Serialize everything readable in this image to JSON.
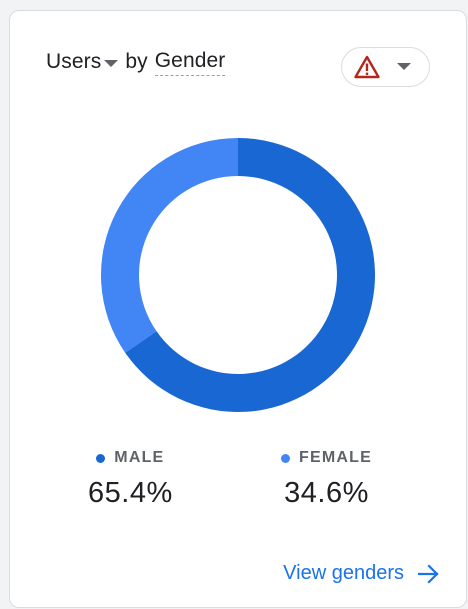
{
  "header": {
    "metric_label": "Users",
    "by_text": "by",
    "dimension_label": "Gender"
  },
  "alert": {
    "icon": "warning-triangle-icon",
    "icon_color": "#b3261e",
    "dropdown_icon": "caret-down-icon"
  },
  "chart_data": {
    "type": "pie",
    "variant": "donut",
    "categories": [
      "MALE",
      "FEMALE"
    ],
    "values": [
      65.4,
      34.6
    ],
    "value_labels": [
      "65.4%",
      "34.6%"
    ],
    "colors": [
      "#1967d2",
      "#4285f4"
    ]
  },
  "footer": {
    "link_label": "View genders",
    "link_icon": "arrow-right-icon",
    "link_color": "#1a73e8"
  }
}
